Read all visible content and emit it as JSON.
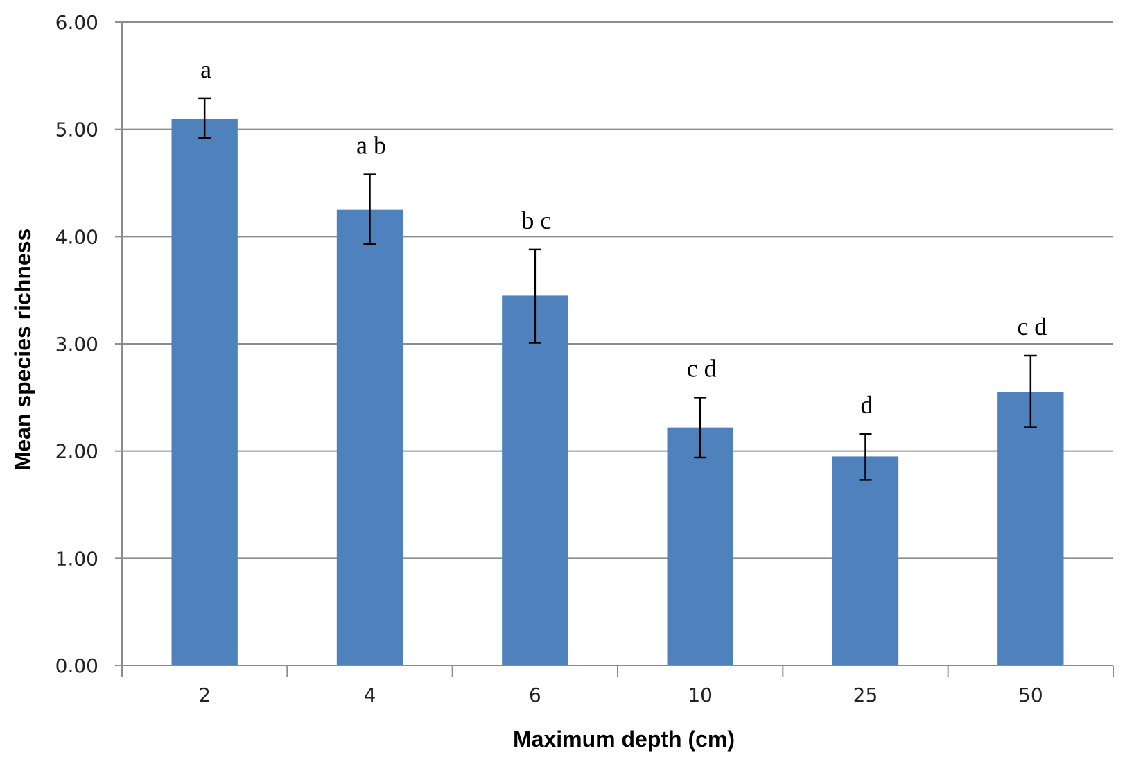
{
  "chart_data": {
    "type": "bar",
    "title": "",
    "xlabel": "Maximum depth (cm)",
    "ylabel": "Mean species richness",
    "categories": [
      "2",
      "4",
      "6",
      "10",
      "25",
      "50"
    ],
    "values": [
      5.1,
      4.25,
      3.45,
      2.22,
      1.95,
      2.55
    ],
    "error_low": [
      4.92,
      3.93,
      3.01,
      1.94,
      1.73,
      2.22
    ],
    "error_high": [
      5.29,
      4.58,
      3.88,
      2.5,
      2.16,
      2.89
    ],
    "significance_labels": [
      "a",
      "a b",
      "b c",
      "c d",
      "d",
      "c d"
    ],
    "ylim": [
      0,
      6
    ],
    "yticks": [
      "0.00",
      "1.00",
      "2.00",
      "3.00",
      "4.00",
      "5.00",
      "6.00"
    ],
    "grid": true,
    "legend": "none",
    "bar_color": "#4f81bd"
  }
}
